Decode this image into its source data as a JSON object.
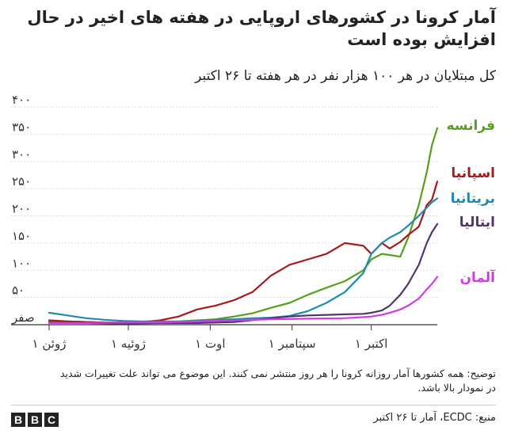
{
  "title": "آمار کرونا در کشورهای اروپایی در هفته های اخیر در حال افزایش بوده است",
  "note": "توضیح: همه کشورها آمار روزانه کرونا را هر روز منتشر نمی کنند. این موضوع می تواند علت تغییرات شدید در نمودار بالا باشد.",
  "source": "منبع: ECDC، آمار تا ۲۶ اکتبر",
  "logo": {
    "letters": [
      "B",
      "B",
      "C"
    ]
  },
  "chart_data": {
    "type": "line",
    "subtitle": "کل مبتلایان در هر ۱۰۰ هزار نفر در هر هفته تا ۲۶ اکتبر",
    "ylim": [
      0,
      400
    ],
    "xlim": [
      "2020-06-01",
      "2020-10-26"
    ],
    "grid": true,
    "y_ticks": [
      {
        "value": 0,
        "label": "صفر"
      },
      {
        "value": 50,
        "label": "۵۰"
      },
      {
        "value": 100,
        "label": "۱۰۰"
      },
      {
        "value": 150,
        "label": "۱۵۰"
      },
      {
        "value": 200,
        "label": "۲۰۰"
      },
      {
        "value": 250,
        "label": "۲۵۰"
      },
      {
        "value": 300,
        "label": "۳۰۰"
      },
      {
        "value": 350,
        "label": "۳۵۰"
      },
      {
        "value": 400,
        "label": "۴۰۰"
      }
    ],
    "x_ticks": [
      {
        "date": "2020-06-01",
        "label": "۱ ژوئن"
      },
      {
        "date": "2020-07-01",
        "label": "۱ ژوئیه"
      },
      {
        "date": "2020-08-01",
        "label": "۱ اوت"
      },
      {
        "date": "2020-09-01",
        "label": "۱ سپتامبر"
      },
      {
        "date": "2020-10-01",
        "label": "۱ اکتبر"
      }
    ],
    "series": [
      {
        "name": "فرانسه",
        "color": "#5a9e1c",
        "points": [
          [
            "2020-06-01",
            6
          ],
          [
            "2020-06-08",
            6
          ],
          [
            "2020-06-15",
            5
          ],
          [
            "2020-06-22",
            4
          ],
          [
            "2020-06-29",
            4
          ],
          [
            "2020-07-06",
            4
          ],
          [
            "2020-07-13",
            5
          ],
          [
            "2020-07-20",
            6
          ],
          [
            "2020-07-27",
            8
          ],
          [
            "2020-08-03",
            10
          ],
          [
            "2020-08-10",
            15
          ],
          [
            "2020-08-17",
            21
          ],
          [
            "2020-08-24",
            31
          ],
          [
            "2020-08-31",
            40
          ],
          [
            "2020-09-07",
            55
          ],
          [
            "2020-09-14",
            68
          ],
          [
            "2020-09-21",
            80
          ],
          [
            "2020-09-28",
            100
          ],
          [
            "2020-10-01",
            120
          ],
          [
            "2020-10-05",
            130
          ],
          [
            "2020-10-08",
            128
          ],
          [
            "2020-10-12",
            125
          ],
          [
            "2020-10-15",
            160
          ],
          [
            "2020-10-19",
            220
          ],
          [
            "2020-10-22",
            280
          ],
          [
            "2020-10-24",
            330
          ],
          [
            "2020-10-26",
            361
          ]
        ]
      },
      {
        "name": "اسپانیا",
        "color": "#a51b1b",
        "points": [
          [
            "2020-06-01",
            8
          ],
          [
            "2020-06-08",
            6
          ],
          [
            "2020-06-15",
            5
          ],
          [
            "2020-06-22",
            4
          ],
          [
            "2020-06-29",
            4
          ],
          [
            "2020-07-06",
            5
          ],
          [
            "2020-07-13",
            8
          ],
          [
            "2020-07-20",
            15
          ],
          [
            "2020-07-27",
            28
          ],
          [
            "2020-08-03",
            35
          ],
          [
            "2020-08-10",
            45
          ],
          [
            "2020-08-17",
            60
          ],
          [
            "2020-08-24",
            90
          ],
          [
            "2020-08-31",
            110
          ],
          [
            "2020-09-07",
            120
          ],
          [
            "2020-09-14",
            130
          ],
          [
            "2020-09-21",
            150
          ],
          [
            "2020-09-28",
            145
          ],
          [
            "2020-10-01",
            130
          ],
          [
            "2020-10-05",
            150
          ],
          [
            "2020-10-08",
            140
          ],
          [
            "2020-10-12",
            152
          ],
          [
            "2020-10-15",
            165
          ],
          [
            "2020-10-19",
            180
          ],
          [
            "2020-10-22",
            220
          ],
          [
            "2020-10-24",
            230
          ],
          [
            "2020-10-26",
            263
          ]
        ]
      },
      {
        "name": "بریتانیا",
        "color": "#1f8bb0",
        "points": [
          [
            "2020-06-01",
            22
          ],
          [
            "2020-06-08",
            17
          ],
          [
            "2020-06-15",
            12
          ],
          [
            "2020-06-22",
            9
          ],
          [
            "2020-06-29",
            7
          ],
          [
            "2020-07-06",
            6
          ],
          [
            "2020-07-13",
            6
          ],
          [
            "2020-07-20",
            6
          ],
          [
            "2020-07-27",
            7
          ],
          [
            "2020-08-03",
            9
          ],
          [
            "2020-08-10",
            10
          ],
          [
            "2020-08-17",
            12
          ],
          [
            "2020-08-24",
            13
          ],
          [
            "2020-08-31",
            16
          ],
          [
            "2020-09-07",
            25
          ],
          [
            "2020-09-14",
            40
          ],
          [
            "2020-09-21",
            60
          ],
          [
            "2020-09-28",
            95
          ],
          [
            "2020-10-01",
            130
          ],
          [
            "2020-10-05",
            150
          ],
          [
            "2020-10-08",
            160
          ],
          [
            "2020-10-12",
            170
          ],
          [
            "2020-10-15",
            182
          ],
          [
            "2020-10-19",
            200
          ],
          [
            "2020-10-22",
            215
          ],
          [
            "2020-10-24",
            225
          ],
          [
            "2020-10-26",
            232
          ]
        ]
      },
      {
        "name": "ایتالیا",
        "color": "#53346e",
        "points": [
          [
            "2020-06-01",
            4
          ],
          [
            "2020-06-15",
            3
          ],
          [
            "2020-06-29",
            2
          ],
          [
            "2020-07-13",
            3
          ],
          [
            "2020-07-27",
            3
          ],
          [
            "2020-08-10",
            5
          ],
          [
            "2020-08-24",
            12
          ],
          [
            "2020-08-31",
            15
          ],
          [
            "2020-09-07",
            17
          ],
          [
            "2020-09-14",
            18
          ],
          [
            "2020-09-21",
            19
          ],
          [
            "2020-09-28",
            20
          ],
          [
            "2020-10-01",
            22
          ],
          [
            "2020-10-05",
            26
          ],
          [
            "2020-10-08",
            35
          ],
          [
            "2020-10-12",
            55
          ],
          [
            "2020-10-15",
            75
          ],
          [
            "2020-10-19",
            110
          ],
          [
            "2020-10-22",
            150
          ],
          [
            "2020-10-24",
            170
          ],
          [
            "2020-10-26",
            185
          ]
        ]
      },
      {
        "name": "آلمان",
        "color": "#d23ae6",
        "points": [
          [
            "2020-06-01",
            3
          ],
          [
            "2020-06-15",
            3
          ],
          [
            "2020-06-29",
            4
          ],
          [
            "2020-07-13",
            4
          ],
          [
            "2020-07-27",
            6
          ],
          [
            "2020-08-10",
            8
          ],
          [
            "2020-08-24",
            10
          ],
          [
            "2020-09-07",
            11
          ],
          [
            "2020-09-21",
            12
          ],
          [
            "2020-09-28",
            14
          ],
          [
            "2020-10-01",
            15
          ],
          [
            "2020-10-05",
            18
          ],
          [
            "2020-10-08",
            22
          ],
          [
            "2020-10-12",
            28
          ],
          [
            "2020-10-15",
            35
          ],
          [
            "2020-10-19",
            48
          ],
          [
            "2020-10-22",
            65
          ],
          [
            "2020-10-24",
            75
          ],
          [
            "2020-10-26",
            88
          ]
        ]
      }
    ]
  }
}
